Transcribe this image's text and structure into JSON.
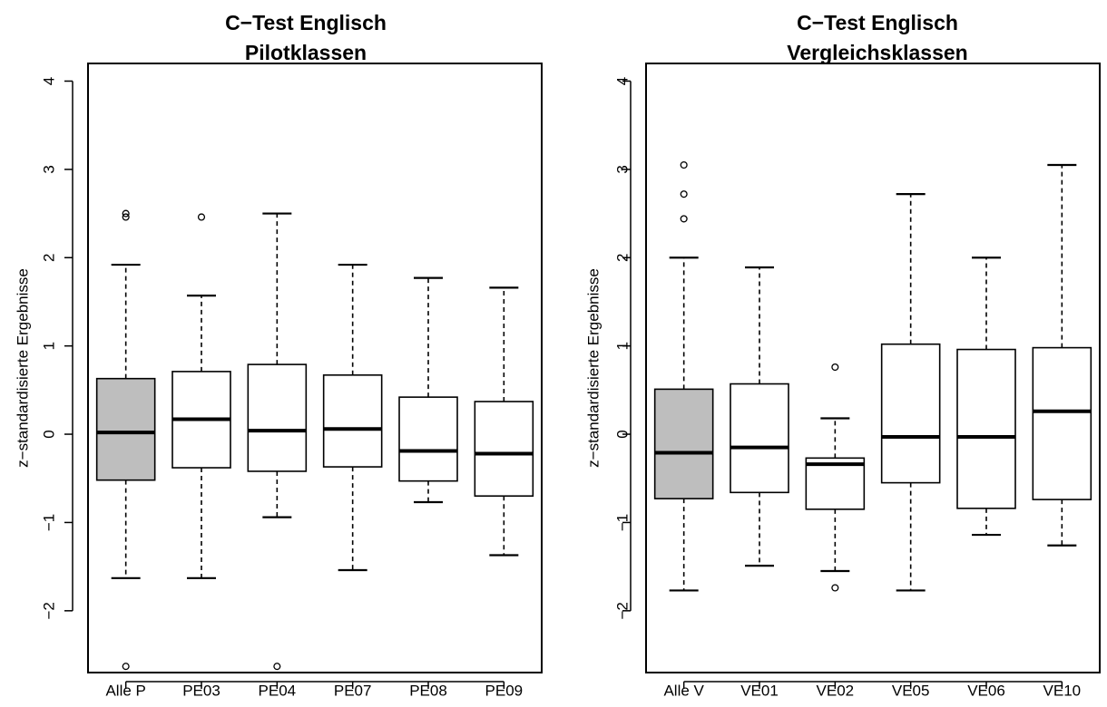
{
  "chart_data": [
    {
      "type": "boxplot",
      "title_lines": [
        "C−Test Englisch",
        "Pilotklassen"
      ],
      "ylabel": "z−standardisierte Ergebnisse",
      "ylim": [
        -2.7,
        4.2
      ],
      "yticks": [
        -2,
        -1,
        0,
        1,
        2,
        3,
        4
      ],
      "ytick_labels": [
        "−2",
        "−1",
        "0",
        "1",
        "2",
        "3",
        "4"
      ],
      "grid": false,
      "boxes": [
        {
          "label": "Alle P",
          "fill": "#bebebe",
          "q1": -0.52,
          "median": 0.02,
          "q3": 0.63,
          "whisker_low": -1.63,
          "whisker_high": 1.92,
          "outliers": [
            -2.63,
            2.46,
            2.5
          ]
        },
        {
          "label": "PE03",
          "fill": "#ffffff",
          "q1": -0.38,
          "median": 0.17,
          "q3": 0.71,
          "whisker_low": -1.63,
          "whisker_high": 1.57,
          "outliers": [
            2.46
          ]
        },
        {
          "label": "PE04",
          "fill": "#ffffff",
          "q1": -0.42,
          "median": 0.04,
          "q3": 0.79,
          "whisker_low": -0.94,
          "whisker_high": 2.5,
          "outliers": [
            -2.63
          ]
        },
        {
          "label": "PE07",
          "fill": "#ffffff",
          "q1": -0.37,
          "median": 0.06,
          "q3": 0.67,
          "whisker_low": -1.54,
          "whisker_high": 1.92,
          "outliers": []
        },
        {
          "label": "PE08",
          "fill": "#ffffff",
          "q1": -0.53,
          "median": -0.19,
          "q3": 0.42,
          "whisker_low": -0.77,
          "whisker_high": 1.77,
          "outliers": []
        },
        {
          "label": "PE09",
          "fill": "#ffffff",
          "q1": -0.7,
          "median": -0.22,
          "q3": 0.37,
          "whisker_low": -1.37,
          "whisker_high": 1.66,
          "outliers": []
        }
      ]
    },
    {
      "type": "boxplot",
      "title_lines": [
        "C−Test Englisch",
        "Vergleichsklassen"
      ],
      "ylabel": "z−standardisierte Ergebnisse",
      "ylim": [
        -2.7,
        4.2
      ],
      "yticks": [
        -2,
        -1,
        0,
        1,
        2,
        3,
        4
      ],
      "ytick_labels": [
        "−2",
        "−1",
        "0",
        "1",
        "2",
        "3",
        "4"
      ],
      "grid": false,
      "boxes": [
        {
          "label": "Alle V",
          "fill": "#bebebe",
          "q1": -0.73,
          "median": -0.21,
          "q3": 0.51,
          "whisker_low": -1.77,
          "whisker_high": 2.0,
          "outliers": [
            2.44,
            2.72,
            3.05
          ]
        },
        {
          "label": "VE01",
          "fill": "#ffffff",
          "q1": -0.66,
          "median": -0.15,
          "q3": 0.57,
          "whisker_low": -1.49,
          "whisker_high": 1.89,
          "outliers": []
        },
        {
          "label": "VE02",
          "fill": "#ffffff",
          "q1": -0.85,
          "median": -0.34,
          "q3": -0.27,
          "whisker_low": -1.55,
          "whisker_high": 0.18,
          "outliers": [
            -1.74,
            0.76
          ]
        },
        {
          "label": "VE05",
          "fill": "#ffffff",
          "q1": -0.55,
          "median": -0.03,
          "q3": 1.02,
          "whisker_low": -1.77,
          "whisker_high": 2.72,
          "outliers": []
        },
        {
          "label": "VE06",
          "fill": "#ffffff",
          "q1": -0.84,
          "median": -0.03,
          "q3": 0.96,
          "whisker_low": -1.14,
          "whisker_high": 2.0,
          "outliers": []
        },
        {
          "label": "VE10",
          "fill": "#ffffff",
          "q1": -0.74,
          "median": 0.26,
          "q3": 0.98,
          "whisker_low": -1.26,
          "whisker_high": 3.05,
          "outliers": []
        }
      ]
    }
  ]
}
